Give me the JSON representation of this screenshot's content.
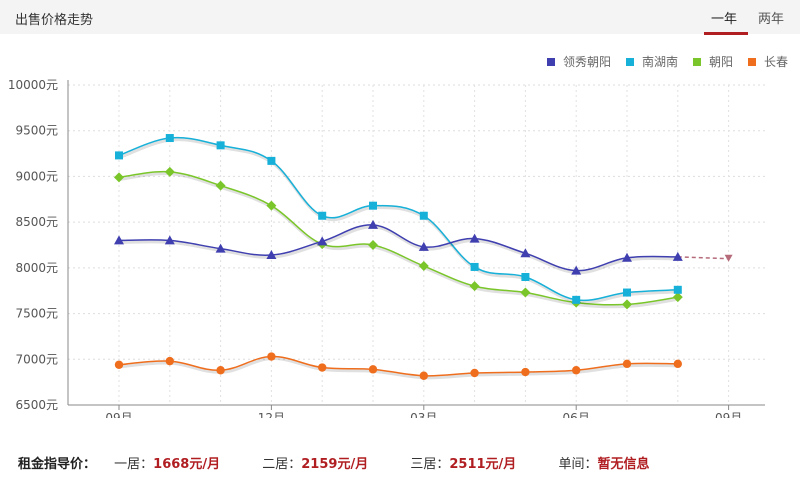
{
  "header": {
    "title": "出售价格走势",
    "tabs": [
      {
        "label": "一年",
        "active": true
      },
      {
        "label": "两年",
        "active": false
      }
    ]
  },
  "chart_data": {
    "type": "line",
    "title": "",
    "xlabel": "",
    "ylabel": "",
    "x_ticks": [
      "09月",
      "12月",
      "03月",
      "06月",
      "09月"
    ],
    "y_ticks": [
      "10000元",
      "9500元",
      "9000元",
      "8500元",
      "8000元",
      "7500元",
      "7000元",
      "6500元"
    ],
    "ylim": [
      6500,
      10000
    ],
    "grid": true,
    "legend_position": "top-right",
    "series": [
      {
        "name": "领秀朝阳",
        "color": "#3f3fb0",
        "marker": "triangle",
        "values": [
          8300,
          8300,
          8210,
          8140,
          8290,
          8470,
          8230,
          8320,
          8160,
          7970,
          8110,
          8120
        ],
        "forecast": [
          8120,
          8100
        ]
      },
      {
        "name": "南湖南",
        "color": "#16b0d8",
        "marker": "square",
        "values": [
          9230,
          9420,
          9340,
          9170,
          8570,
          8680,
          8570,
          8010,
          7900,
          7650,
          7730,
          7760
        ]
      },
      {
        "name": "朝阳",
        "color": "#7ac62a",
        "marker": "diamond",
        "values": [
          8990,
          9050,
          8900,
          8680,
          8260,
          8250,
          8020,
          7800,
          7730,
          7620,
          7600,
          7680
        ]
      },
      {
        "name": "长春",
        "color": "#ee6e1e",
        "marker": "circle",
        "values": [
          6940,
          6980,
          6880,
          7030,
          6910,
          6890,
          6820,
          6850,
          6860,
          6880,
          6950,
          6950
        ]
      }
    ]
  },
  "rent_guide": {
    "label": "租金指导价：",
    "items": [
      {
        "name": "一居：",
        "value": "1668元/月"
      },
      {
        "name": "二居：",
        "value": "2159元/月"
      },
      {
        "name": "三居：",
        "value": "2511元/月"
      },
      {
        "name": "单间：",
        "value": "暂无信息"
      }
    ]
  }
}
